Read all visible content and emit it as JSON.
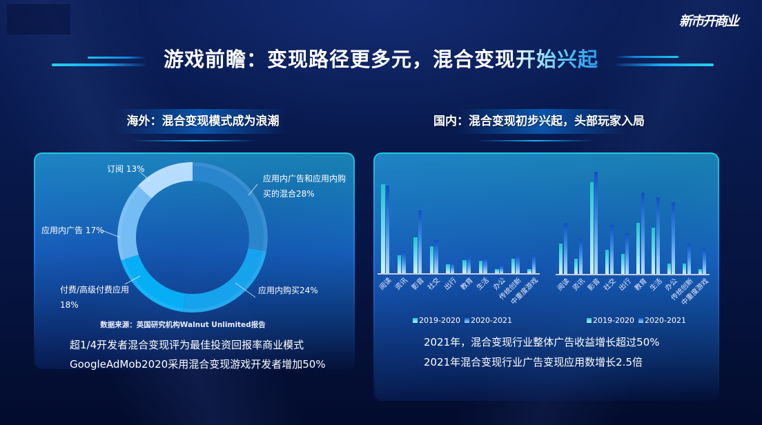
{
  "header": {
    "logo": "新市开商业",
    "title_main": "游戏前瞻：变现路径更多元，混合变现",
    "title_highlight": "开始兴起"
  },
  "overseas": {
    "heading": "海外：混合变现模式成为浪潮",
    "source": "数据来源：英国研究机构Walnut Unlimited报告",
    "bullets": [
      "超1/4开发者混合变现评为最佳投资回报率商业模式",
      "GoogleAdMob2020采用混合变现游戏开发者增加50%"
    ]
  },
  "domestic": {
    "heading": "国内：混合变现初步兴起，头部玩家入局",
    "bullets": [
      "2021年，混合变现行业整体广告收益增长超过50%",
      "2021年混合变现行业广告变现应用数增长2.5倍"
    ]
  },
  "chart_data": [
    {
      "type": "pie",
      "subtype": "donut",
      "title": "海外：混合变现模式成为浪潮",
      "categories": [
        "应用内广告和应用内购买的混合",
        "应用内购买",
        "付费/高级付费应用",
        "应用内广告",
        "订阅"
      ],
      "values": [
        28,
        24,
        18,
        17,
        13
      ],
      "unit": "%",
      "colors": [
        "#2a86cc",
        "#16a2ec",
        "#06aef6",
        "#74bcf4",
        "#b6dcff"
      ],
      "labels": [
        [
          "应用内广告和应用内购",
          "买的混合28%"
        ],
        [
          "应用内购买24%"
        ],
        [
          "付费/高级付费应用",
          "18%"
        ],
        [
          "应用内广告 17%"
        ],
        [
          "订阅 13%"
        ]
      ],
      "start_angle": "12 o'clock, clockwise",
      "legend": "none (direct labels)",
      "source": "数据来源：英国研究机构Walnut Unlimited报告"
    },
    {
      "type": "bar",
      "title": "",
      "xlabel": "",
      "ylabel": "",
      "categories": [
        "阅读",
        "资讯",
        "影音",
        "社交",
        "出行",
        "教育",
        "生活",
        "办公",
        "传统创新",
        "中重度游戏"
      ],
      "series": [
        {
          "name": "2019-2020",
          "values": [
            129,
            26,
            52,
            39,
            13,
            19,
            18,
            6,
            21,
            6
          ]
        },
        {
          "name": "2020-2021",
          "values": [
            127,
            32,
            91,
            48,
            15,
            24,
            22,
            11,
            26,
            26
          ]
        }
      ],
      "value_note": "no y-axis shown; values are relative bar heights",
      "ylim": [
        0,
        150
      ],
      "grid": false,
      "legend_position": "bottom"
    },
    {
      "type": "bar",
      "title": "",
      "xlabel": "",
      "ylabel": "",
      "categories": [
        "阅读",
        "资讯",
        "影音",
        "社交",
        "出行",
        "教育",
        "生活",
        "办公",
        "传统创新",
        "中重度游戏"
      ],
      "series": [
        {
          "name": "2019-2020",
          "values": [
            44,
            22,
            133,
            35,
            29,
            74,
            67,
            15,
            15,
            7
          ]
        },
        {
          "name": "2020-2021",
          "values": [
            74,
            51,
            148,
            71,
            59,
            118,
            111,
            104,
            44,
            37
          ]
        }
      ],
      "value_note": "no y-axis shown; values are relative bar heights",
      "ylim": [
        0,
        150
      ],
      "grid": false,
      "legend_position": "bottom"
    }
  ]
}
